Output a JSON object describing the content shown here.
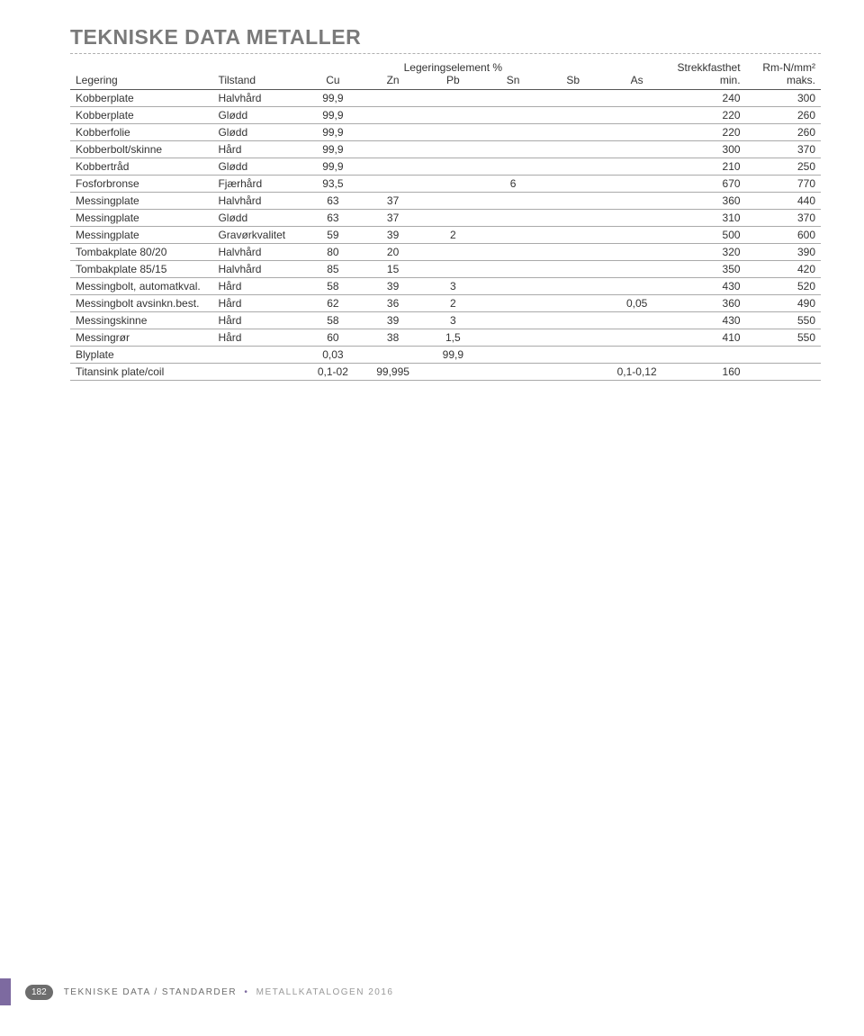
{
  "title": "TEKNISKE DATA METALLER",
  "super_headers": {
    "legeringselement": "Legeringselement %",
    "strekkfasthet": "Strekkfasthet",
    "rm": "Rm-N/mm²"
  },
  "headers": {
    "legering": "Legering",
    "tilstand": "Tilstand",
    "cu": "Cu",
    "zn": "Zn",
    "pb": "Pb",
    "sn": "Sn",
    "sb": "Sb",
    "as": "As",
    "min": "min.",
    "maks": "maks."
  },
  "rows": [
    {
      "name": "Kobberplate",
      "state": "Halvhård",
      "cu": "99,9",
      "zn": "",
      "pb": "",
      "sn": "",
      "sb": "",
      "as": "",
      "min": "240",
      "maks": "300"
    },
    {
      "name": "Kobberplate",
      "state": "Glødd",
      "cu": "99,9",
      "zn": "",
      "pb": "",
      "sn": "",
      "sb": "",
      "as": "",
      "min": "220",
      "maks": "260"
    },
    {
      "name": "Kobberfolie",
      "state": "Glødd",
      "cu": "99,9",
      "zn": "",
      "pb": "",
      "sn": "",
      "sb": "",
      "as": "",
      "min": "220",
      "maks": "260"
    },
    {
      "name": "Kobberbolt/skinne",
      "state": "Hård",
      "cu": "99,9",
      "zn": "",
      "pb": "",
      "sn": "",
      "sb": "",
      "as": "",
      "min": "300",
      "maks": "370"
    },
    {
      "name": "Kobbertråd",
      "state": "Glødd",
      "cu": "99,9",
      "zn": "",
      "pb": "",
      "sn": "",
      "sb": "",
      "as": "",
      "min": "210",
      "maks": "250"
    },
    {
      "name": "Fosforbronse",
      "state": "Fjærhård",
      "cu": "93,5",
      "zn": "",
      "pb": "",
      "sn": "6",
      "sb": "",
      "as": "",
      "min": "670",
      "maks": "770"
    },
    {
      "name": "Messingplate",
      "state": "Halvhård",
      "cu": "63",
      "zn": "37",
      "pb": "",
      "sn": "",
      "sb": "",
      "as": "",
      "min": "360",
      "maks": "440"
    },
    {
      "name": "Messingplate",
      "state": "Glødd",
      "cu": "63",
      "zn": "37",
      "pb": "",
      "sn": "",
      "sb": "",
      "as": "",
      "min": "310",
      "maks": "370"
    },
    {
      "name": "Messingplate",
      "state": "Gravørkvalitet",
      "cu": "59",
      "zn": "39",
      "pb": "2",
      "sn": "",
      "sb": "",
      "as": "",
      "min": "500",
      "maks": "600"
    },
    {
      "name": "Tombakplate 80/20",
      "state": "Halvhård",
      "cu": "80",
      "zn": "20",
      "pb": "",
      "sn": "",
      "sb": "",
      "as": "",
      "min": "320",
      "maks": "390"
    },
    {
      "name": "Tombakplate 85/15",
      "state": "Halvhård",
      "cu": "85",
      "zn": "15",
      "pb": "",
      "sn": "",
      "sb": "",
      "as": "",
      "min": "350",
      "maks": "420"
    },
    {
      "name": "Messingbolt, automatkval.",
      "state": "Hård",
      "cu": "58",
      "zn": "39",
      "pb": "3",
      "sn": "",
      "sb": "",
      "as": "",
      "min": "430",
      "maks": "520"
    },
    {
      "name": "Messingbolt avsinkn.best.",
      "state": "Hård",
      "cu": "62",
      "zn": "36",
      "pb": "2",
      "sn": "",
      "sb": "",
      "as": "0,05",
      "min": "360",
      "maks": "490"
    },
    {
      "name": "Messingskinne",
      "state": "Hård",
      "cu": "58",
      "zn": "39",
      "pb": "3",
      "sn": "",
      "sb": "",
      "as": "",
      "min": "430",
      "maks": "550"
    },
    {
      "name": "Messingrør",
      "state": "Hård",
      "cu": "60",
      "zn": "38",
      "pb": "1,5",
      "sn": "",
      "sb": "",
      "as": "",
      "min": "410",
      "maks": "550"
    },
    {
      "name": "Blyplate",
      "state": "",
      "cu": "0,03",
      "zn": "",
      "pb": "99,9",
      "sn": "",
      "sb": "",
      "as": "",
      "min": "",
      "maks": ""
    },
    {
      "name": "Titansink plate/coil",
      "state": "",
      "cu": "0,1-02",
      "zn": "99,995",
      "pb": "",
      "sn": "",
      "sb": "",
      "as": "0,1-0,12",
      "min": "160",
      "maks": ""
    }
  ],
  "footer": {
    "page_number": "182",
    "section": "TEKNISKE DATA / STANDARDER",
    "book": "METALLKATALOGEN 2016"
  },
  "colors": {
    "title": "#7a7a7a",
    "accent": "#7d6aa0",
    "row_border": "#aaaaaa",
    "header_border": "#555555",
    "dash": "#b0b0b0"
  }
}
